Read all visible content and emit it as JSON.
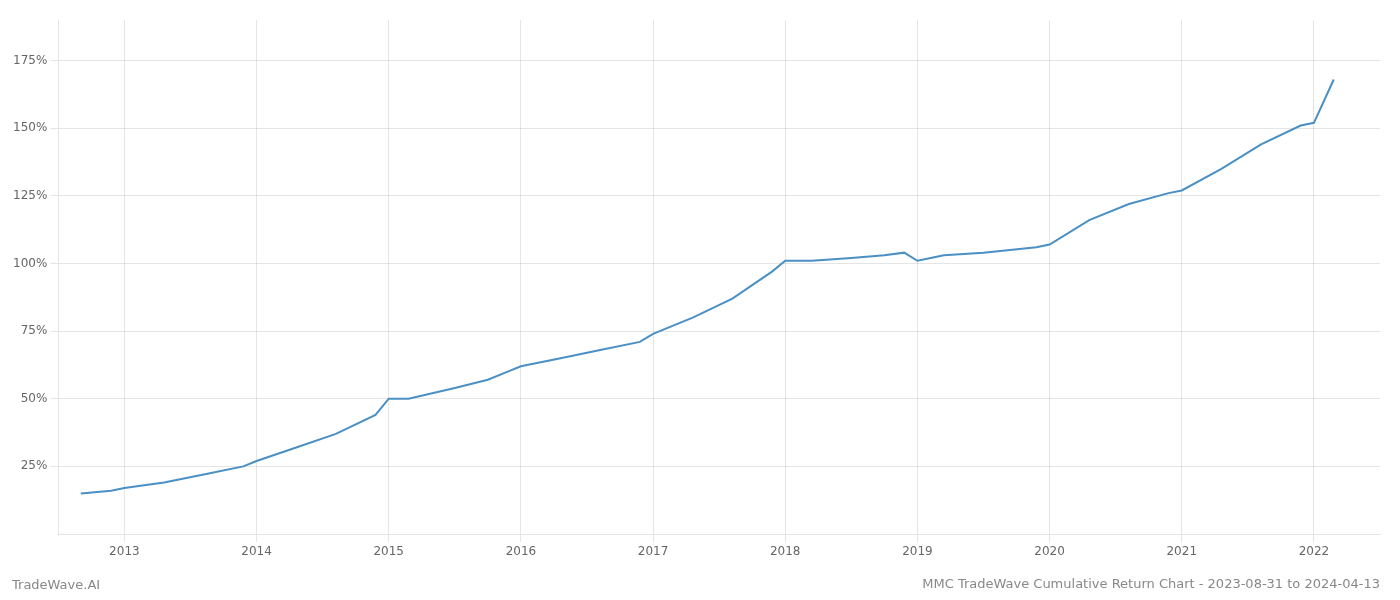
{
  "chart_data": {
    "type": "line",
    "title": "MMC TradeWave Cumulative Return Chart - 2023-08-31 to 2024-04-13",
    "annotations": [
      "TradeWave.AI"
    ],
    "color": "#4a90c4",
    "grid": true,
    "x": [
      2012.67,
      2012.9,
      2013.0,
      2013.3,
      2013.6,
      2013.9,
      2014.0,
      2014.3,
      2014.6,
      2014.9,
      2015.0,
      2015.1,
      2015.15,
      2015.5,
      2015.75,
      2015.9,
      2016.0,
      2016.3,
      2016.6,
      2016.9,
      2017.0,
      2017.3,
      2017.6,
      2017.9,
      2018.0,
      2018.1,
      2018.2,
      2018.5,
      2018.75,
      2018.9,
      2019.0,
      2019.1,
      2019.2,
      2019.5,
      2019.9,
      2020.0,
      2020.3,
      2020.6,
      2020.9,
      2021.0,
      2021.3,
      2021.6,
      2021.9,
      2022.0,
      2022.15
    ],
    "values": [
      15,
      16,
      17,
      19,
      22,
      25,
      27,
      32,
      37,
      44,
      50,
      50,
      50,
      54,
      57,
      60,
      62,
      65,
      68,
      71,
      74,
      80,
      87,
      97,
      101,
      101,
      101,
      102,
      103,
      104,
      101,
      102,
      103,
      104,
      106,
      107,
      116,
      122,
      126,
      127,
      135,
      144,
      151,
      152,
      168
    ],
    "xlim": [
      2012.5,
      2022.5
    ],
    "xticks": [
      2013,
      2014,
      2015,
      2016,
      2017,
      2018,
      2019,
      2020,
      2021,
      2022
    ],
    "ylim": [
      0,
      190
    ],
    "yticks": [
      {
        "value": 25,
        "label": "25%"
      },
      {
        "value": 50,
        "label": "50%"
      },
      {
        "value": 75,
        "label": "75%"
      },
      {
        "value": 100,
        "label": "100%"
      },
      {
        "value": 125,
        "label": "125%"
      },
      {
        "value": 150,
        "label": "150%"
      },
      {
        "value": 175,
        "label": "175%"
      }
    ]
  }
}
